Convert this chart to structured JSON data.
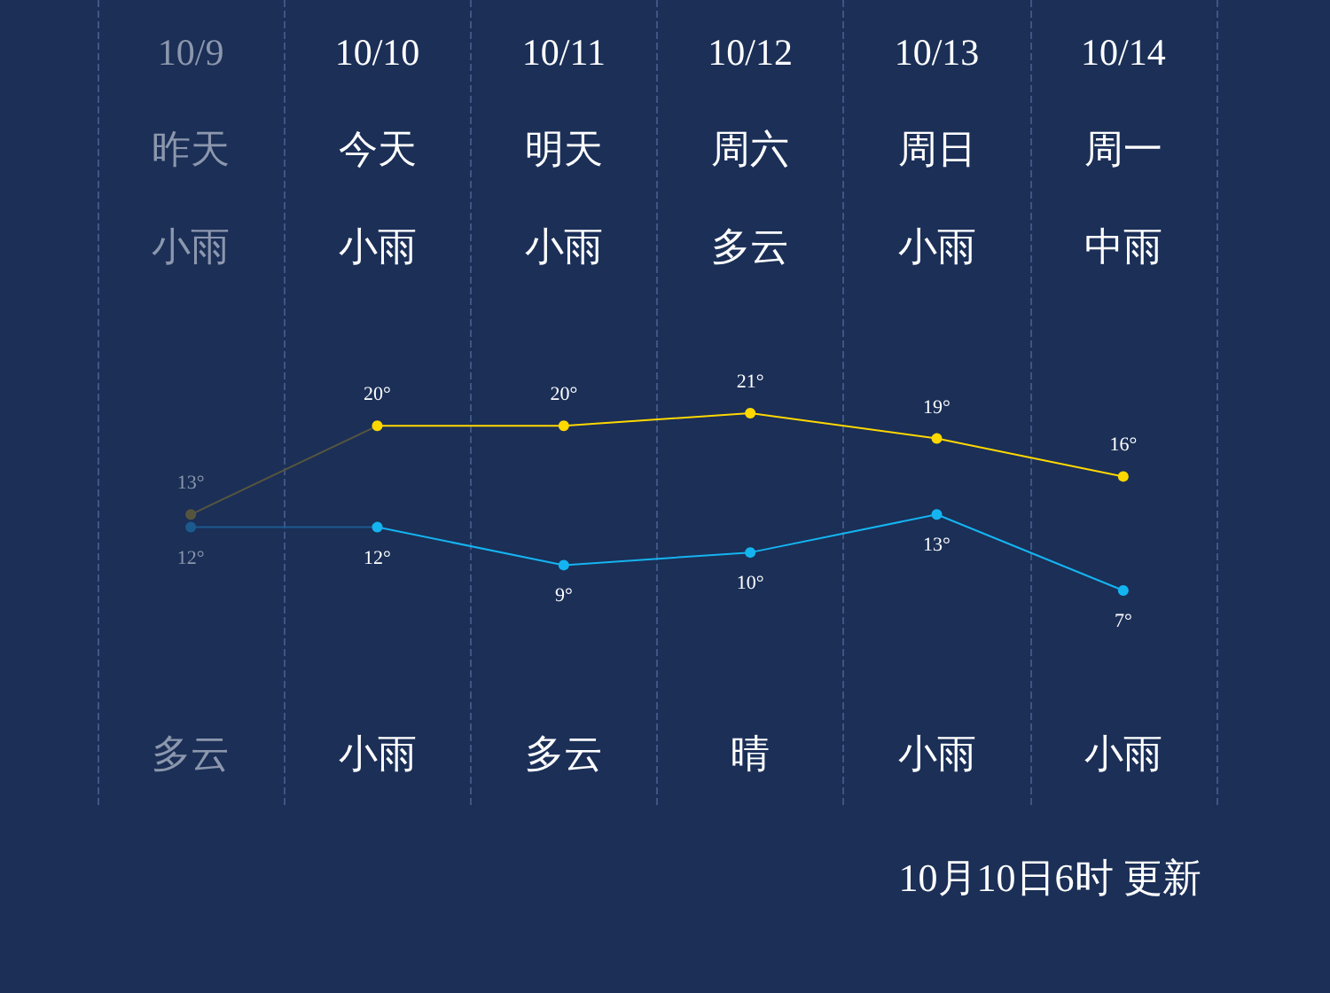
{
  "chart_data": {
    "type": "line",
    "categories": [
      "10/9",
      "10/10",
      "10/11",
      "10/12",
      "10/13",
      "10/14"
    ],
    "series": [
      {
        "color": "#ffd800",
        "colors": [
          "#55553f",
          null,
          null,
          null,
          null,
          null
        ],
        "values": [
          13,
          20,
          20,
          21,
          19,
          16
        ],
        "value_labels": [
          "13°",
          "20°",
          "20°",
          "21°",
          "19°",
          "16°"
        ]
      },
      {
        "color": "#14b4f0",
        "colors": [
          "#1c5a8e",
          null,
          null,
          null,
          null,
          null
        ],
        "values": [
          12,
          12,
          9,
          10,
          13,
          7
        ],
        "value_labels": [
          "12°",
          "12°",
          "9°",
          "10°",
          "13°",
          "7°"
        ]
      }
    ],
    "annotations": [
      "昨天",
      "今天",
      "明天",
      "周六",
      "周日",
      "周一",
      "小雨",
      "小雨",
      "小雨",
      "多云",
      "小雨",
      "中雨",
      "多云",
      "小雨",
      "多云",
      "晴",
      "小雨",
      "小雨",
      "10月10日6时 更新"
    ],
    "grid": "x",
    "marker": "circle",
    "line_style": "solid"
  }
}
